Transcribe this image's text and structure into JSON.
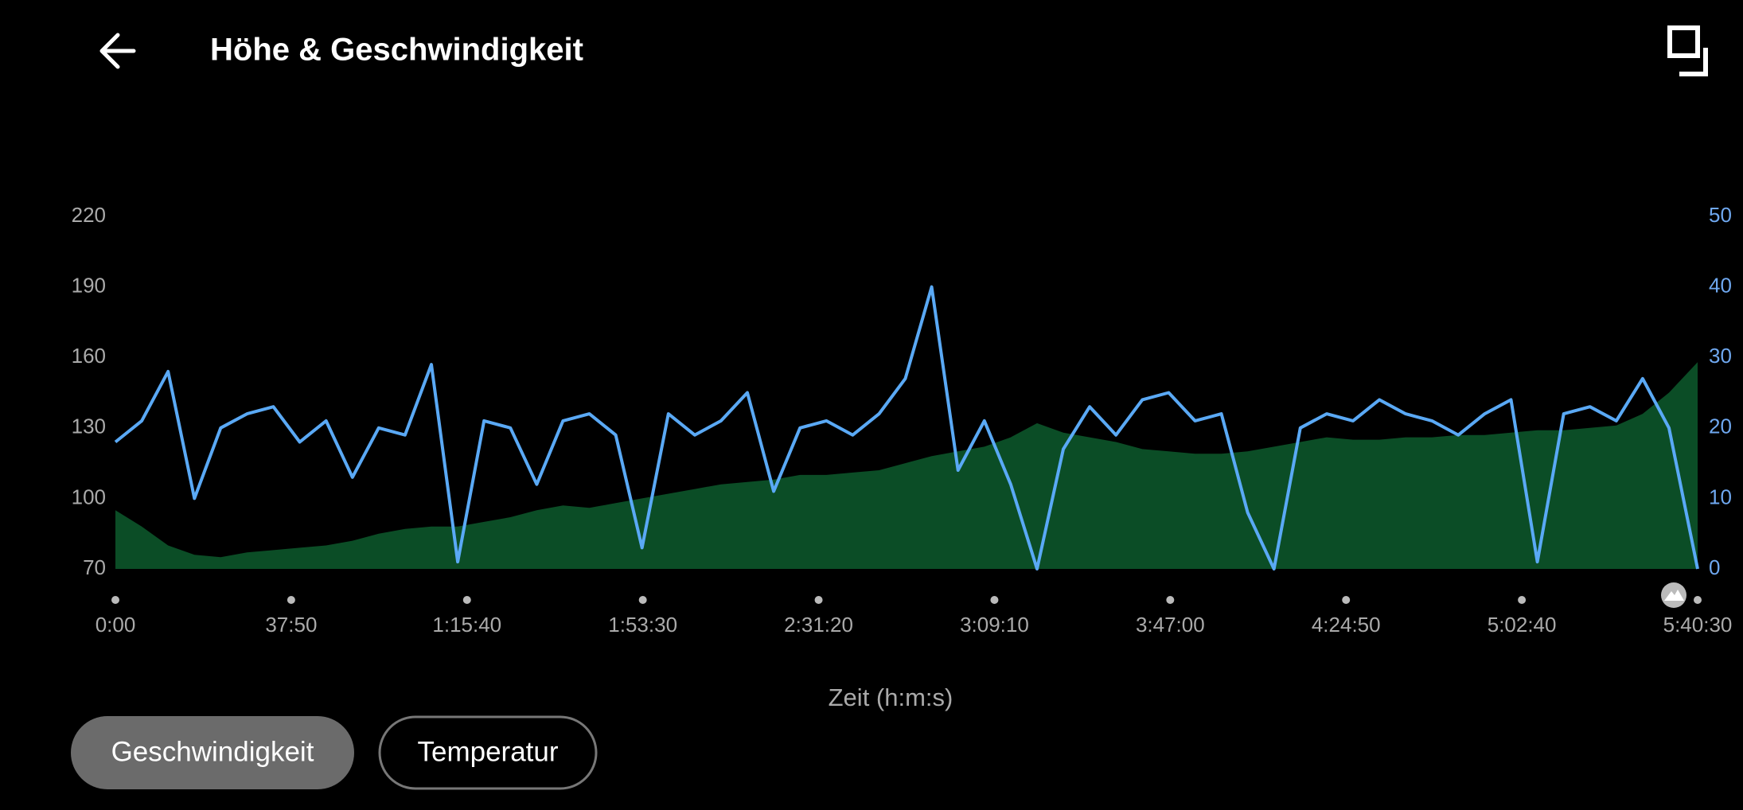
{
  "chart_data": {
    "type": "line",
    "title": "Höhe & Geschwindigkeit",
    "xlabel": "Zeit (h:m:s)",
    "x": [
      0,
      340,
      680,
      1020,
      1360,
      1700,
      2040,
      2380,
      2720,
      3060,
      3400,
      3740,
      4080,
      4420,
      4760,
      5100,
      5440,
      5780,
      6120,
      6460,
      6800,
      7140,
      7480,
      7820,
      8160,
      8500,
      8840,
      9180,
      9520,
      9860,
      10200,
      10540,
      10880,
      11220,
      11560,
      11900,
      12240,
      12580,
      12920,
      13260,
      13600,
      13940,
      14280,
      14620,
      14960,
      15300,
      15640,
      15980,
      16320,
      16660,
      17000,
      17340,
      17680,
      18020,
      18360,
      18700,
      19040,
      19380,
      19720,
      20060,
      20430
    ],
    "series": [
      {
        "color": "#0b4d26",
        "area": true,
        "axis": "y",
        "values": [
          95,
          88,
          80,
          76,
          75,
          77,
          78,
          79,
          80,
          82,
          85,
          87,
          88,
          88,
          90,
          92,
          95,
          97,
          96,
          98,
          100,
          102,
          104,
          106,
          107,
          108,
          110,
          110,
          111,
          112,
          115,
          118,
          120,
          122,
          126,
          132,
          128,
          126,
          124,
          121,
          120,
          119,
          119,
          120,
          122,
          124,
          126,
          125,
          125,
          126,
          126,
          127,
          127,
          128,
          129,
          129,
          130,
          131,
          136,
          145,
          158
        ]
      },
      {
        "color": "#5aa9f5",
        "area": false,
        "axis": "y2",
        "values": [
          18,
          21,
          28,
          10,
          20,
          22,
          23,
          18,
          21,
          13,
          20,
          19,
          29,
          1,
          21,
          20,
          12,
          21,
          22,
          19,
          3,
          22,
          19,
          21,
          25,
          11,
          20,
          21,
          19,
          22,
          27,
          40,
          14,
          21,
          12,
          0,
          17,
          23,
          19,
          24,
          25,
          21,
          22,
          8,
          0,
          20,
          22,
          21,
          24,
          22,
          21,
          19,
          22,
          24,
          1,
          22,
          23,
          21,
          27,
          20,
          0
        ]
      }
    ],
    "xlim": [
      0,
      20430
    ],
    "xticks": [
      {
        "value": 0,
        "label": "0:00"
      },
      {
        "value": 2270,
        "label": "37:50"
      },
      {
        "value": 4540,
        "label": "1:15:40"
      },
      {
        "value": 6810,
        "label": "1:53:30"
      },
      {
        "value": 9080,
        "label": "2:31:20"
      },
      {
        "value": 11350,
        "label": "3:09:10"
      },
      {
        "value": 13620,
        "label": "3:47:00"
      },
      {
        "value": 15890,
        "label": "4:24:50"
      },
      {
        "value": 18160,
        "label": "5:02:40"
      },
      {
        "value": 20430,
        "label": "5:40:30"
      }
    ],
    "ylim": [
      70,
      220
    ],
    "yticks": [
      70,
      100,
      130,
      160,
      190,
      220
    ],
    "y2lim": [
      0,
      50
    ],
    "y2ticks": [
      0,
      10,
      20,
      30,
      40,
      50
    ],
    "grid": false
  },
  "buttons": [
    {
      "label": "Geschwindigkeit",
      "active": true
    },
    {
      "label": "Temperatur",
      "active": false
    }
  ]
}
